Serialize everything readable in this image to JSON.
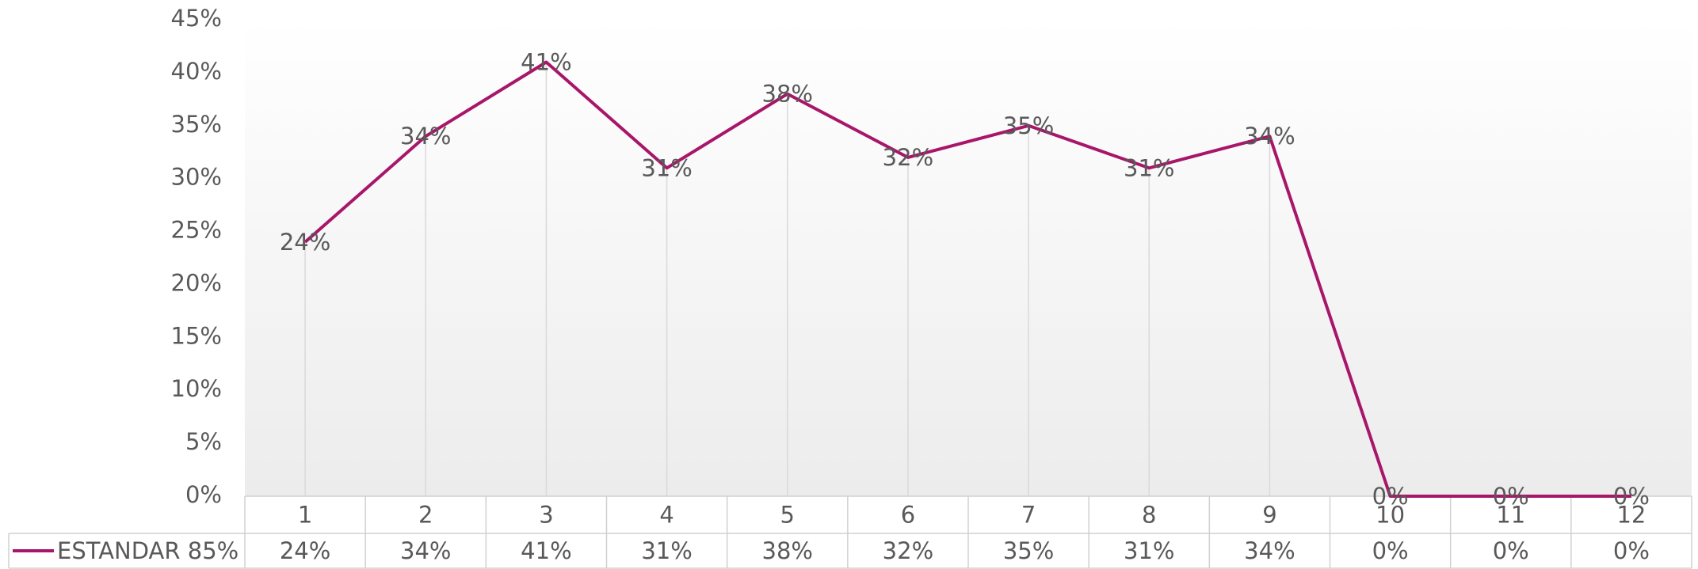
{
  "chart_data": {
    "type": "line",
    "categories": [
      "1",
      "2",
      "3",
      "4",
      "5",
      "6",
      "7",
      "8",
      "9",
      "10",
      "11",
      "12"
    ],
    "series": [
      {
        "name": "ESTANDAR 85%",
        "color": "#a8166a",
        "values": [
          24,
          34,
          41,
          31,
          38,
          32,
          35,
          31,
          34,
          0,
          0,
          0
        ],
        "value_labels": [
          "24%",
          "34%",
          "41%",
          "31%",
          "38%",
          "32%",
          "35%",
          "31%",
          "34%",
          "0%",
          "0%",
          "0%"
        ]
      }
    ],
    "ylim": [
      0,
      45
    ],
    "yticks": [
      {
        "value": 0,
        "label": "0%"
      },
      {
        "value": 5,
        "label": "5%"
      },
      {
        "value": 10,
        "label": "10%"
      },
      {
        "value": 15,
        "label": "15%"
      },
      {
        "value": 20,
        "label": "20%"
      },
      {
        "value": 25,
        "label": "25%"
      },
      {
        "value": 30,
        "label": "30%"
      },
      {
        "value": 35,
        "label": "35%"
      },
      {
        "value": 40,
        "label": "40%"
      },
      {
        "value": 45,
        "label": "45%"
      }
    ],
    "grid": false
  }
}
